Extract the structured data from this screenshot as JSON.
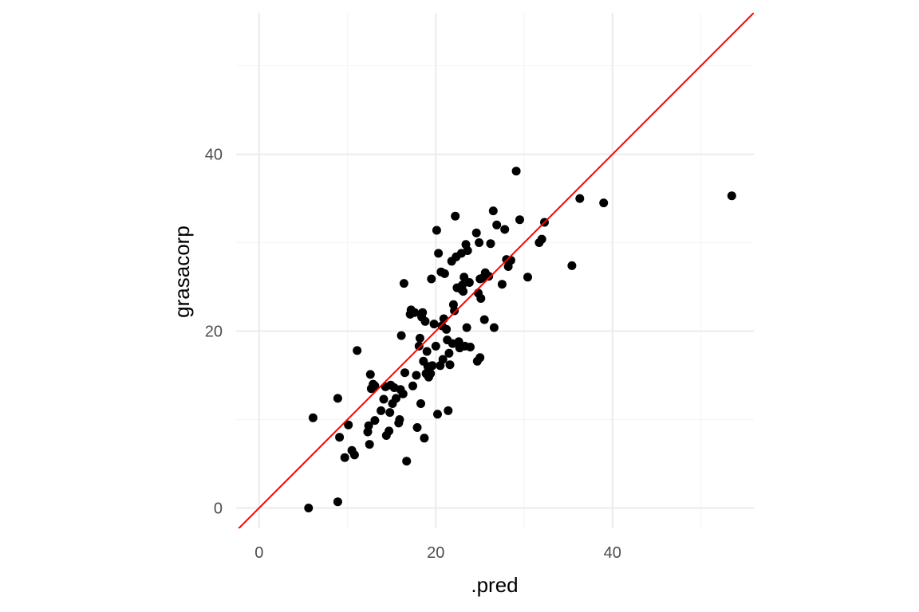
{
  "chart_data": {
    "type": "scatter",
    "title": "",
    "xlabel": ".pred",
    "ylabel": "grasacorp",
    "xlim": [
      -2.6,
      56.0
    ],
    "ylim": [
      -2.3,
      56.0
    ],
    "xticks": [
      0,
      20,
      40
    ],
    "yticks": [
      0,
      20,
      40
    ],
    "xtick_labels": [
      "0",
      "20",
      "40"
    ],
    "ytick_labels": [
      "0",
      "20",
      "40"
    ],
    "grid": true,
    "colors": {
      "points": "#000000",
      "reference_line": "#ff0000",
      "grid_major": "#ebebeb",
      "grid_minor": "#f5f5f5",
      "tick_text": "#4d4d4d"
    },
    "reference_line": {
      "slope": 1,
      "intercept": 0
    },
    "points": [
      [
        5.6,
        0.0
      ],
      [
        8.9,
        0.7
      ],
      [
        6.1,
        10.2
      ],
      [
        8.9,
        12.4
      ],
      [
        9.1,
        8.0
      ],
      [
        9.7,
        5.7
      ],
      [
        10.1,
        9.4
      ],
      [
        10.5,
        6.5
      ],
      [
        10.8,
        6.0
      ],
      [
        11.1,
        17.8
      ],
      [
        12.3,
        8.6
      ],
      [
        12.4,
        9.3
      ],
      [
        12.5,
        7.2
      ],
      [
        12.6,
        15.1
      ],
      [
        12.7,
        13.5
      ],
      [
        12.9,
        14.0
      ],
      [
        13.1,
        13.8
      ],
      [
        13.1,
        9.9
      ],
      [
        13.8,
        11.0
      ],
      [
        14.1,
        12.3
      ],
      [
        14.3,
        13.7
      ],
      [
        14.4,
        8.2
      ],
      [
        14.7,
        8.7
      ],
      [
        14.8,
        10.8
      ],
      [
        14.9,
        13.9
      ],
      [
        15.1,
        11.8
      ],
      [
        15.3,
        13.6
      ],
      [
        15.5,
        12.4
      ],
      [
        15.8,
        9.6
      ],
      [
        15.9,
        10.0
      ],
      [
        16.0,
        13.4
      ],
      [
        16.1,
        19.5
      ],
      [
        16.3,
        12.9
      ],
      [
        16.4,
        25.4
      ],
      [
        16.5,
        15.3
      ],
      [
        16.7,
        5.3
      ],
      [
        17.1,
        21.9
      ],
      [
        17.2,
        22.4
      ],
      [
        17.4,
        13.8
      ],
      [
        17.6,
        22.1
      ],
      [
        17.8,
        15.0
      ],
      [
        17.9,
        9.1
      ],
      [
        18.1,
        18.3
      ],
      [
        18.2,
        19.2
      ],
      [
        18.3,
        11.8
      ],
      [
        18.4,
        21.6
      ],
      [
        18.5,
        22.1
      ],
      [
        18.6,
        16.6
      ],
      [
        18.7,
        7.9
      ],
      [
        18.8,
        21.1
      ],
      [
        18.9,
        15.2
      ],
      [
        19.0,
        17.7
      ],
      [
        19.1,
        16.0
      ],
      [
        19.2,
        14.8
      ],
      [
        19.4,
        15.2
      ],
      [
        19.5,
        25.9
      ],
      [
        19.6,
        16.1
      ],
      [
        19.8,
        20.8
      ],
      [
        20.0,
        18.3
      ],
      [
        20.1,
        31.4
      ],
      [
        20.2,
        10.6
      ],
      [
        20.3,
        28.8
      ],
      [
        20.5,
        16.1
      ],
      [
        20.6,
        26.7
      ],
      [
        20.7,
        20.6
      ],
      [
        20.8,
        16.8
      ],
      [
        20.9,
        21.4
      ],
      [
        21.0,
        26.5
      ],
      [
        21.2,
        20.2
      ],
      [
        21.3,
        19.0
      ],
      [
        21.4,
        11.0
      ],
      [
        21.5,
        17.5
      ],
      [
        21.6,
        16.2
      ],
      [
        21.8,
        27.9
      ],
      [
        21.9,
        18.6
      ],
      [
        22.0,
        23.0
      ],
      [
        22.1,
        22.3
      ],
      [
        22.2,
        33.0
      ],
      [
        22.3,
        28.4
      ],
      [
        22.4,
        24.9
      ],
      [
        22.6,
        18.8
      ],
      [
        22.7,
        18.1
      ],
      [
        22.8,
        24.8
      ],
      [
        22.9,
        28.8
      ],
      [
        23.0,
        25.2
      ],
      [
        23.1,
        24.5
      ],
      [
        23.2,
        26.1
      ],
      [
        23.3,
        18.3
      ],
      [
        23.4,
        29.8
      ],
      [
        23.5,
        20.4
      ],
      [
        23.6,
        29.1
      ],
      [
        23.8,
        25.5
      ],
      [
        23.9,
        18.2
      ],
      [
        24.6,
        31.1
      ],
      [
        24.7,
        16.6
      ],
      [
        24.8,
        24.3
      ],
      [
        24.9,
        30.0
      ],
      [
        25.0,
        17.0
      ],
      [
        25.0,
        25.9
      ],
      [
        25.1,
        23.7
      ],
      [
        25.3,
        26.0
      ],
      [
        25.5,
        21.3
      ],
      [
        25.6,
        26.6
      ],
      [
        26.0,
        26.2
      ],
      [
        26.2,
        29.9
      ],
      [
        26.5,
        33.6
      ],
      [
        26.6,
        20.4
      ],
      [
        26.9,
        32.0
      ],
      [
        27.5,
        25.3
      ],
      [
        27.8,
        31.5
      ],
      [
        28.0,
        28.1
      ],
      [
        28.2,
        27.3
      ],
      [
        28.5,
        28.0
      ],
      [
        29.1,
        38.1
      ],
      [
        29.5,
        32.6
      ],
      [
        30.4,
        26.1
      ],
      [
        31.7,
        30.0
      ],
      [
        32.0,
        30.4
      ],
      [
        32.3,
        32.3
      ],
      [
        35.4,
        27.4
      ],
      [
        36.3,
        35.0
      ],
      [
        39.0,
        34.5
      ],
      [
        53.5,
        35.3
      ]
    ]
  }
}
